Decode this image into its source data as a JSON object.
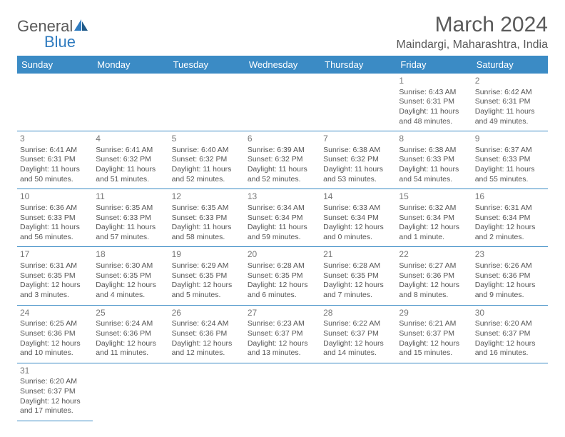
{
  "logo": {
    "text1": "General",
    "text2": "Blue"
  },
  "title": "March 2024",
  "location": "Maindargi, Maharashtra, India",
  "colors": {
    "header_bg": "#3b8bc5",
    "header_text": "#ffffff",
    "rule": "#3b8bc5",
    "body_text": "#555",
    "title_text": "#5a5a5a"
  },
  "weekdays": [
    "Sunday",
    "Monday",
    "Tuesday",
    "Wednesday",
    "Thursday",
    "Friday",
    "Saturday"
  ],
  "weeks": [
    [
      null,
      null,
      null,
      null,
      null,
      {
        "n": "1",
        "sr": "Sunrise: 6:43 AM",
        "ss": "Sunset: 6:31 PM",
        "dl": "Daylight: 11 hours and 48 minutes."
      },
      {
        "n": "2",
        "sr": "Sunrise: 6:42 AM",
        "ss": "Sunset: 6:31 PM",
        "dl": "Daylight: 11 hours and 49 minutes."
      }
    ],
    [
      {
        "n": "3",
        "sr": "Sunrise: 6:41 AM",
        "ss": "Sunset: 6:31 PM",
        "dl": "Daylight: 11 hours and 50 minutes."
      },
      {
        "n": "4",
        "sr": "Sunrise: 6:41 AM",
        "ss": "Sunset: 6:32 PM",
        "dl": "Daylight: 11 hours and 51 minutes."
      },
      {
        "n": "5",
        "sr": "Sunrise: 6:40 AM",
        "ss": "Sunset: 6:32 PM",
        "dl": "Daylight: 11 hours and 52 minutes."
      },
      {
        "n": "6",
        "sr": "Sunrise: 6:39 AM",
        "ss": "Sunset: 6:32 PM",
        "dl": "Daylight: 11 hours and 52 minutes."
      },
      {
        "n": "7",
        "sr": "Sunrise: 6:38 AM",
        "ss": "Sunset: 6:32 PM",
        "dl": "Daylight: 11 hours and 53 minutes."
      },
      {
        "n": "8",
        "sr": "Sunrise: 6:38 AM",
        "ss": "Sunset: 6:33 PM",
        "dl": "Daylight: 11 hours and 54 minutes."
      },
      {
        "n": "9",
        "sr": "Sunrise: 6:37 AM",
        "ss": "Sunset: 6:33 PM",
        "dl": "Daylight: 11 hours and 55 minutes."
      }
    ],
    [
      {
        "n": "10",
        "sr": "Sunrise: 6:36 AM",
        "ss": "Sunset: 6:33 PM",
        "dl": "Daylight: 11 hours and 56 minutes."
      },
      {
        "n": "11",
        "sr": "Sunrise: 6:35 AM",
        "ss": "Sunset: 6:33 PM",
        "dl": "Daylight: 11 hours and 57 minutes."
      },
      {
        "n": "12",
        "sr": "Sunrise: 6:35 AM",
        "ss": "Sunset: 6:33 PM",
        "dl": "Daylight: 11 hours and 58 minutes."
      },
      {
        "n": "13",
        "sr": "Sunrise: 6:34 AM",
        "ss": "Sunset: 6:34 PM",
        "dl": "Daylight: 11 hours and 59 minutes."
      },
      {
        "n": "14",
        "sr": "Sunrise: 6:33 AM",
        "ss": "Sunset: 6:34 PM",
        "dl": "Daylight: 12 hours and 0 minutes."
      },
      {
        "n": "15",
        "sr": "Sunrise: 6:32 AM",
        "ss": "Sunset: 6:34 PM",
        "dl": "Daylight: 12 hours and 1 minute."
      },
      {
        "n": "16",
        "sr": "Sunrise: 6:31 AM",
        "ss": "Sunset: 6:34 PM",
        "dl": "Daylight: 12 hours and 2 minutes."
      }
    ],
    [
      {
        "n": "17",
        "sr": "Sunrise: 6:31 AM",
        "ss": "Sunset: 6:35 PM",
        "dl": "Daylight: 12 hours and 3 minutes."
      },
      {
        "n": "18",
        "sr": "Sunrise: 6:30 AM",
        "ss": "Sunset: 6:35 PM",
        "dl": "Daylight: 12 hours and 4 minutes."
      },
      {
        "n": "19",
        "sr": "Sunrise: 6:29 AM",
        "ss": "Sunset: 6:35 PM",
        "dl": "Daylight: 12 hours and 5 minutes."
      },
      {
        "n": "20",
        "sr": "Sunrise: 6:28 AM",
        "ss": "Sunset: 6:35 PM",
        "dl": "Daylight: 12 hours and 6 minutes."
      },
      {
        "n": "21",
        "sr": "Sunrise: 6:28 AM",
        "ss": "Sunset: 6:35 PM",
        "dl": "Daylight: 12 hours and 7 minutes."
      },
      {
        "n": "22",
        "sr": "Sunrise: 6:27 AM",
        "ss": "Sunset: 6:36 PM",
        "dl": "Daylight: 12 hours and 8 minutes."
      },
      {
        "n": "23",
        "sr": "Sunrise: 6:26 AM",
        "ss": "Sunset: 6:36 PM",
        "dl": "Daylight: 12 hours and 9 minutes."
      }
    ],
    [
      {
        "n": "24",
        "sr": "Sunrise: 6:25 AM",
        "ss": "Sunset: 6:36 PM",
        "dl": "Daylight: 12 hours and 10 minutes."
      },
      {
        "n": "25",
        "sr": "Sunrise: 6:24 AM",
        "ss": "Sunset: 6:36 PM",
        "dl": "Daylight: 12 hours and 11 minutes."
      },
      {
        "n": "26",
        "sr": "Sunrise: 6:24 AM",
        "ss": "Sunset: 6:36 PM",
        "dl": "Daylight: 12 hours and 12 minutes."
      },
      {
        "n": "27",
        "sr": "Sunrise: 6:23 AM",
        "ss": "Sunset: 6:37 PM",
        "dl": "Daylight: 12 hours and 13 minutes."
      },
      {
        "n": "28",
        "sr": "Sunrise: 6:22 AM",
        "ss": "Sunset: 6:37 PM",
        "dl": "Daylight: 12 hours and 14 minutes."
      },
      {
        "n": "29",
        "sr": "Sunrise: 6:21 AM",
        "ss": "Sunset: 6:37 PM",
        "dl": "Daylight: 12 hours and 15 minutes."
      },
      {
        "n": "30",
        "sr": "Sunrise: 6:20 AM",
        "ss": "Sunset: 6:37 PM",
        "dl": "Daylight: 12 hours and 16 minutes."
      }
    ],
    [
      {
        "n": "31",
        "sr": "Sunrise: 6:20 AM",
        "ss": "Sunset: 6:37 PM",
        "dl": "Daylight: 12 hours and 17 minutes."
      },
      null,
      null,
      null,
      null,
      null,
      null
    ]
  ]
}
